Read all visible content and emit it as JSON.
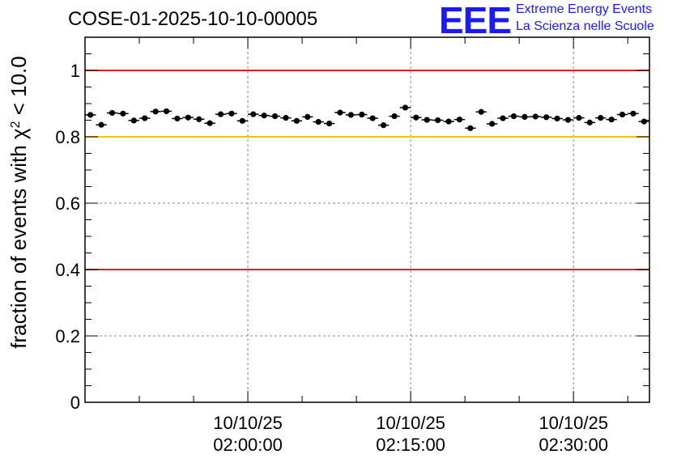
{
  "branding": {
    "logo_text": "EEE",
    "line1": "Extreme Energy Events",
    "line2": "La Scienza nelle Scuole"
  },
  "colors": {
    "frame": "#000000",
    "grid": "#888888",
    "red_line": "#e02020",
    "yellow_line": "#f5c400",
    "points": "#000000",
    "logo": "#1a1aff"
  },
  "chart_data": {
    "type": "scatter",
    "title": "COSE-01-2025-10-10-00005",
    "xlabel": "",
    "ylabel": "fraction of events with χ² < 10.0",
    "ylabel_parts": {
      "main": "fraction of events with ",
      "symbol": "χ",
      "sup": "2",
      "tail": " < 10.0"
    },
    "x_unit": "minutes after 01:45:00",
    "xlim": [
      0,
      52
    ],
    "ylim": [
      0,
      1.1
    ],
    "y_ticks": [
      {
        "value": 0,
        "label": "0"
      },
      {
        "value": 0.2,
        "label": "0.2"
      },
      {
        "value": 0.4,
        "label": "0.4"
      },
      {
        "value": 0.6,
        "label": "0.6"
      },
      {
        "value": 0.8,
        "label": "0.8"
      },
      {
        "value": 1.0,
        "label": "1"
      }
    ],
    "x_ticks": [
      {
        "value": 15,
        "date": "10/10/25",
        "time": "02:00:00"
      },
      {
        "value": 30,
        "date": "10/10/25",
        "time": "02:15:00"
      },
      {
        "value": 45,
        "date": "10/10/25",
        "time": "02:30:00"
      }
    ],
    "grid": true,
    "reference_lines": [
      {
        "y": 1.0,
        "color": "red"
      },
      {
        "y": 0.8,
        "color": "yellow"
      },
      {
        "y": 0.4,
        "color": "red"
      }
    ],
    "x": [
      0.5,
      1.5,
      2.5,
      3.5,
      4.5,
      5.5,
      6.5,
      7.5,
      8.5,
      9.5,
      10.5,
      11.5,
      12.5,
      13.5,
      14.5,
      15.5,
      16.5,
      17.5,
      18.5,
      19.5,
      20.5,
      21.5,
      22.5,
      23.5,
      24.5,
      25.5,
      26.5,
      27.5,
      28.5,
      29.5,
      30.5,
      31.5,
      32.5,
      33.5,
      34.5,
      35.5,
      36.5,
      37.5,
      38.5,
      39.5,
      40.5,
      41.5,
      42.5,
      43.5,
      44.5,
      45.5,
      46.5,
      47.5,
      48.5,
      49.5,
      50.5,
      51.5
    ],
    "y": [
      0.866,
      0.836,
      0.872,
      0.87,
      0.849,
      0.856,
      0.876,
      0.877,
      0.855,
      0.858,
      0.853,
      0.841,
      0.868,
      0.87,
      0.848,
      0.868,
      0.864,
      0.862,
      0.857,
      0.848,
      0.86,
      0.845,
      0.84,
      0.873,
      0.866,
      0.867,
      0.856,
      0.835,
      0.862,
      0.888,
      0.858,
      0.851,
      0.85,
      0.846,
      0.852,
      0.826,
      0.875,
      0.839,
      0.856,
      0.862,
      0.86,
      0.861,
      0.859,
      0.855,
      0.851,
      0.857,
      0.843,
      0.857,
      0.852,
      0.867,
      0.87,
      0.846
    ],
    "yerr": 0.008
  }
}
